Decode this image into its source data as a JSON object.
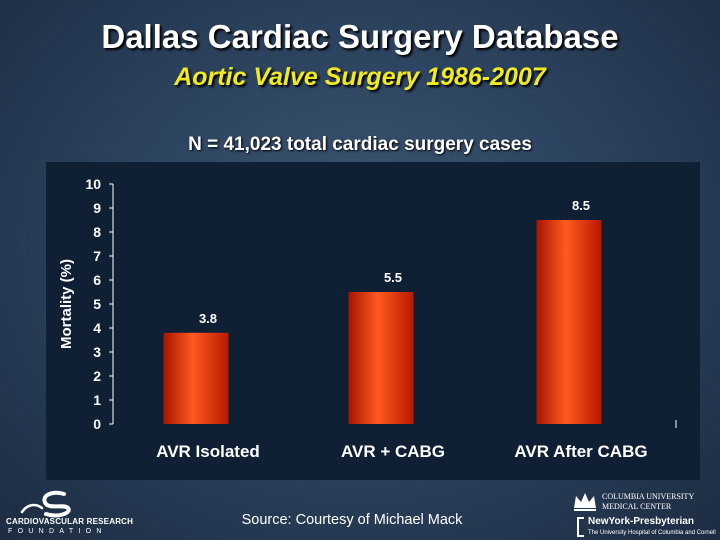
{
  "header": {
    "title": "Dallas Cardiac Surgery Database",
    "subtitle": "Aortic Valve Surgery 1986-2007",
    "note": "N = 41,023 total cardiac surgery cases"
  },
  "chart_data": {
    "type": "bar",
    "title": "",
    "categories": [
      "AVR Isolated",
      "AVR + CABG",
      "AVR After CABG"
    ],
    "values": [
      3.8,
      5.5,
      8.5
    ],
    "data_labels": [
      "3.8",
      "5.5",
      "8.5"
    ],
    "xlabel": "",
    "ylabel": "Mortality (%)",
    "ylim": [
      0,
      10
    ],
    "yticks": [
      "0",
      "1",
      "2",
      "3",
      "4",
      "5",
      "6",
      "7",
      "8",
      "9",
      "10"
    ],
    "grid": false,
    "legend": "none"
  },
  "footer": {
    "source": "Source: Courtesy of Michael Mack",
    "left_logo": {
      "name_line1": "CARDIOVASCULAR RESEARCH",
      "name_line2": "FOUNDATION"
    },
    "right_logo": {
      "line1": "COLUMBIA UNIVERSITY",
      "line2": "MEDICAL CENTER",
      "line3": "NewYork-Presbyterian",
      "line4": "The University Hospital of Columbia and Cornell"
    }
  },
  "colors": {
    "background": "#2d4460",
    "chart_panel": "#0f1f34",
    "bar_dark": "#c81b00",
    "bar_light": "#ff5a1f",
    "subtitle": "#f2ea1e",
    "text": "#ffffff"
  }
}
